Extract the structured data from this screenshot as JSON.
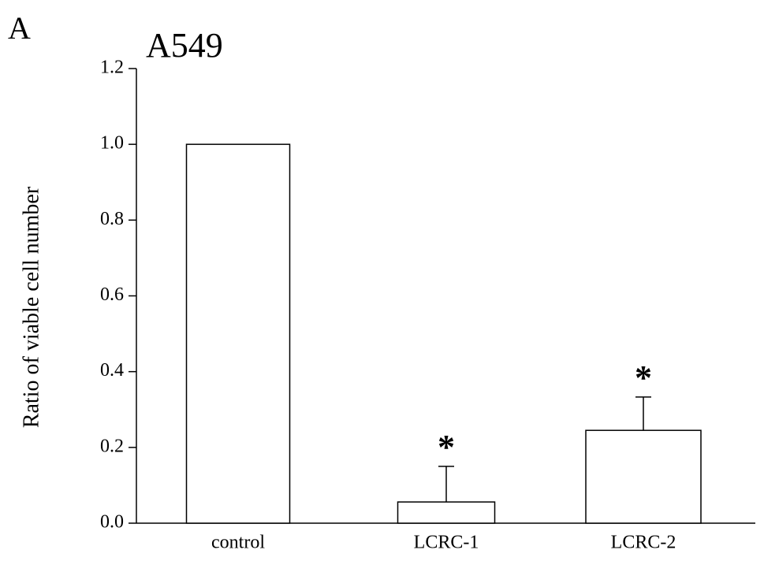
{
  "chart_data": {
    "type": "bar",
    "panel_label": "A",
    "title": "A549",
    "ylabel": "Ratio of viable cell number",
    "categories": [
      "control",
      "LCRC-1",
      "LCRC-2"
    ],
    "values": [
      1.0,
      0.056,
      0.245
    ],
    "errors": [
      null,
      0.094,
      0.088
    ],
    "annotations": [
      null,
      "*",
      "*"
    ],
    "color": "#ffffff",
    "ylim": [
      0,
      1.2
    ],
    "yticks": [
      {
        "value": 0,
        "label": "0.0"
      },
      0.2,
      0.4,
      0.6,
      0.8,
      {
        "value": 1,
        "label": "1.0"
      },
      1.2
    ],
    "grid": false
  }
}
